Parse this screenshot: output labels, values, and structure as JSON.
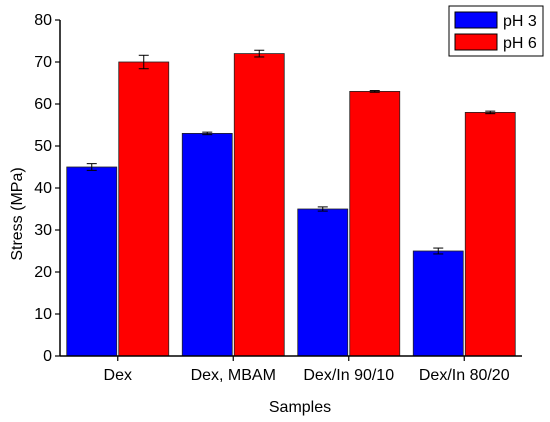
{
  "chart_data": {
    "type": "bar",
    "title": "",
    "xlabel": "Samples",
    "ylabel": "Stress (MPa)",
    "ylim": [
      0,
      80
    ],
    "yticks": [
      0,
      10,
      20,
      30,
      40,
      50,
      60,
      70,
      80
    ],
    "categories": [
      "Dex",
      "Dex, MBAM",
      "Dex/In 90/10",
      "Dex/In 80/20"
    ],
    "series": [
      {
        "name": "pH 3",
        "color": "#0000ff",
        "values": [
          45,
          53,
          35,
          25
        ],
        "errors": [
          0.8,
          0.3,
          0.5,
          0.7
        ]
      },
      {
        "name": "pH 6",
        "color": "#ff0000",
        "values": [
          70,
          72,
          63,
          58
        ],
        "errors": [
          1.6,
          0.8,
          0.2,
          0.3
        ]
      }
    ],
    "legend": "top-right",
    "grid": false
  }
}
